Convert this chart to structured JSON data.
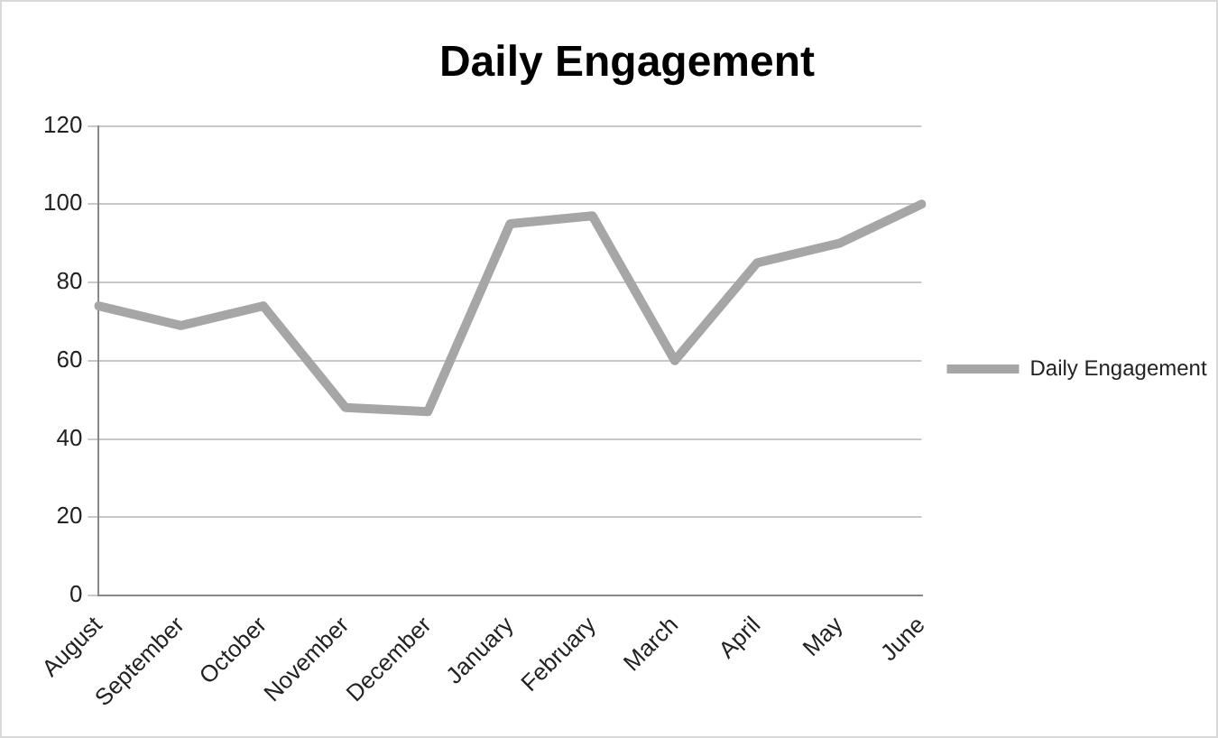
{
  "chart_data": {
    "type": "line",
    "title": "Daily Engagement",
    "categories": [
      "August",
      "September",
      "October",
      "November",
      "December",
      "January",
      "February",
      "March",
      "April",
      "May",
      "June"
    ],
    "series": [
      {
        "name": "Daily Engagement",
        "color": "#a6a6a6",
        "values": [
          74,
          69,
          74,
          48,
          47,
          95,
          97,
          60,
          85,
          90,
          100
        ]
      }
    ],
    "ylim": [
      0,
      120
    ],
    "yticks": [
      0,
      20,
      40,
      60,
      80,
      100,
      120
    ],
    "grid": "y",
    "legend": "right",
    "marker": "none",
    "line_style": "solid"
  }
}
